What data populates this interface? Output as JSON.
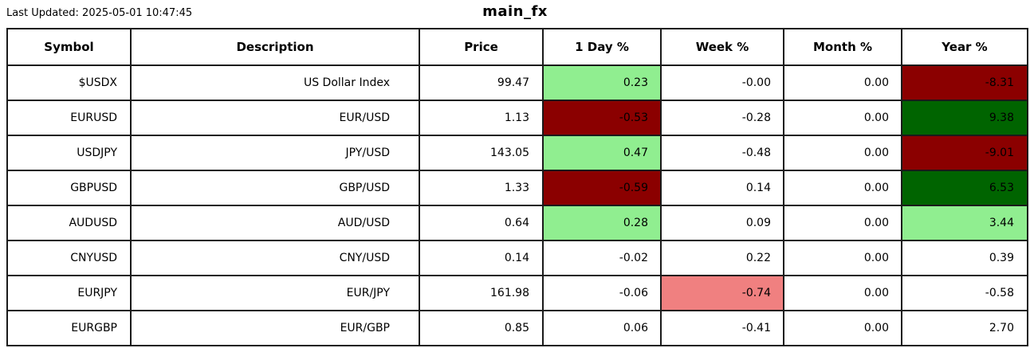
{
  "page": {
    "last_updated": "Last Updated: 2025-05-01 10:47:45",
    "title": "main_fx"
  },
  "colors": {
    "light_green": "#90EE90",
    "dark_green": "#006400",
    "light_red": "#F08080",
    "dark_red": "#8B0000",
    "none": "#FFFFFF"
  },
  "table": {
    "columns": [
      "Symbol",
      "Description",
      "Price",
      "1 Day %",
      "Week %",
      "Month %",
      "Year %"
    ],
    "rows": [
      {
        "symbol": "$USDX",
        "description": "US Dollar Index",
        "price": "99.47",
        "day": "0.23",
        "day_bg": "light_green",
        "week": "-0.00",
        "week_bg": "none",
        "month": "0.00",
        "month_bg": "none",
        "year": "-8.31",
        "year_bg": "dark_red"
      },
      {
        "symbol": "EURUSD",
        "description": "EUR/USD",
        "price": "1.13",
        "day": "-0.53",
        "day_bg": "dark_red",
        "week": "-0.28",
        "week_bg": "none",
        "month": "0.00",
        "month_bg": "none",
        "year": "9.38",
        "year_bg": "dark_green"
      },
      {
        "symbol": "USDJPY",
        "description": "JPY/USD",
        "price": "143.05",
        "day": "0.47",
        "day_bg": "light_green",
        "week": "-0.48",
        "week_bg": "none",
        "month": "0.00",
        "month_bg": "none",
        "year": "-9.01",
        "year_bg": "dark_red"
      },
      {
        "symbol": "GBPUSD",
        "description": "GBP/USD",
        "price": "1.33",
        "day": "-0.59",
        "day_bg": "dark_red",
        "week": "0.14",
        "week_bg": "none",
        "month": "0.00",
        "month_bg": "none",
        "year": "6.53",
        "year_bg": "dark_green"
      },
      {
        "symbol": "AUDUSD",
        "description": "AUD/USD",
        "price": "0.64",
        "day": "0.28",
        "day_bg": "light_green",
        "week": "0.09",
        "week_bg": "none",
        "month": "0.00",
        "month_bg": "none",
        "year": "3.44",
        "year_bg": "light_green"
      },
      {
        "symbol": "CNYUSD",
        "description": "CNY/USD",
        "price": "0.14",
        "day": "-0.02",
        "day_bg": "none",
        "week": "0.22",
        "week_bg": "none",
        "month": "0.00",
        "month_bg": "none",
        "year": "0.39",
        "year_bg": "none"
      },
      {
        "symbol": "EURJPY",
        "description": "EUR/JPY",
        "price": "161.98",
        "day": "-0.06",
        "day_bg": "none",
        "week": "-0.74",
        "week_bg": "light_red",
        "month": "0.00",
        "month_bg": "none",
        "year": "-0.58",
        "year_bg": "none"
      },
      {
        "symbol": "EURGBP",
        "description": "EUR/GBP",
        "price": "0.85",
        "day": "0.06",
        "day_bg": "none",
        "week": "-0.41",
        "week_bg": "none",
        "month": "0.00",
        "month_bg": "none",
        "year": "2.70",
        "year_bg": "none"
      }
    ]
  }
}
